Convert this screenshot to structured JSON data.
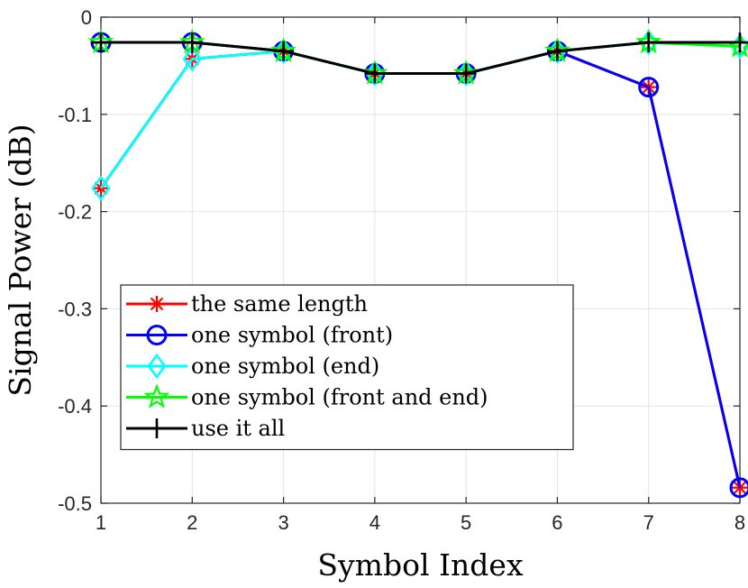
{
  "chart_data": {
    "type": "line",
    "xlabel": "Symbol Index",
    "ylabel": "Signal Power (dB)",
    "xlim": [
      1,
      8
    ],
    "ylim": [
      -0.5,
      0
    ],
    "xticks": [
      1,
      2,
      3,
      4,
      5,
      6,
      7,
      8
    ],
    "yticks": [
      0,
      -0.1,
      -0.2,
      -0.3,
      -0.4,
      -0.5
    ],
    "ytick_labels": [
      "0",
      "-0.1",
      "-0.2",
      "-0.3",
      "-0.4",
      "-0.5"
    ],
    "grid": true,
    "legend_position": "bottom-left",
    "x": [
      1,
      2,
      3,
      4,
      5,
      6,
      7,
      8
    ],
    "series": [
      {
        "name": "the same length",
        "color": "#ff0000",
        "marker": "asterisk",
        "values": [
          -0.176,
          -0.043,
          -0.035,
          -0.058,
          -0.058,
          -0.035,
          -0.072,
          -0.484
        ]
      },
      {
        "name": "one symbol (front)",
        "color": "#0000ff",
        "marker": "circle",
        "values": [
          -0.026,
          -0.026,
          -0.035,
          -0.058,
          -0.058,
          -0.035,
          -0.072,
          -0.484
        ]
      },
      {
        "name": "one symbol (end)",
        "color": "#00ffff",
        "marker": "diamond",
        "values": [
          -0.176,
          -0.043,
          -0.035,
          -0.058,
          -0.058,
          -0.035,
          -0.026,
          -0.03
        ]
      },
      {
        "name": "one symbol (front and end)",
        "color": "#00ff00",
        "marker": "pentagram",
        "values": [
          -0.026,
          -0.026,
          -0.035,
          -0.058,
          -0.058,
          -0.035,
          -0.026,
          -0.03
        ]
      },
      {
        "name": "use it all",
        "color": "#000000",
        "marker": "plus",
        "values": [
          -0.026,
          -0.026,
          -0.035,
          -0.058,
          -0.058,
          -0.035,
          -0.026,
          -0.026
        ]
      }
    ]
  }
}
